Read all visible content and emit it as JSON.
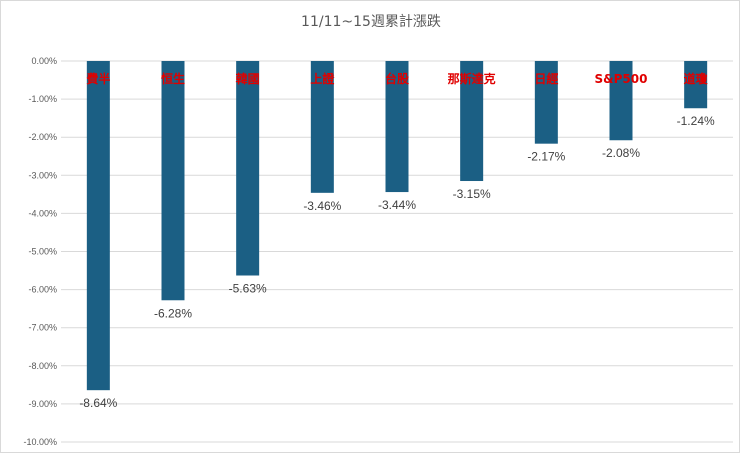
{
  "chart_data": {
    "type": "bar",
    "title": "11/11~15週累計漲跌",
    "categories": [
      "費半",
      "恒生",
      "韓國",
      "上證",
      "台股",
      "那斯達克",
      "日經",
      "S&P500",
      "道瓊"
    ],
    "values": [
      -8.64,
      -6.28,
      -5.63,
      -3.46,
      -3.44,
      -3.15,
      -2.17,
      -2.08,
      -1.24
    ],
    "value_labels": [
      "-8.64%",
      "-6.28%",
      "-5.63%",
      "-3.46%",
      "-3.44%",
      "-3.15%",
      "-2.17%",
      "-2.08%",
      "-1.24%"
    ],
    "y_ticks": [
      "0.00%",
      "-1.00%",
      "-2.00%",
      "-3.00%",
      "-4.00%",
      "-5.00%",
      "-6.00%",
      "-7.00%",
      "-8.00%",
      "-9.00%",
      "-10.00%"
    ],
    "ylim": [
      -10,
      0
    ],
    "grid": true,
    "legend": "none",
    "bar_color": "#1b5f84",
    "category_label_color": "#e00000",
    "xlabel": "",
    "ylabel": ""
  }
}
